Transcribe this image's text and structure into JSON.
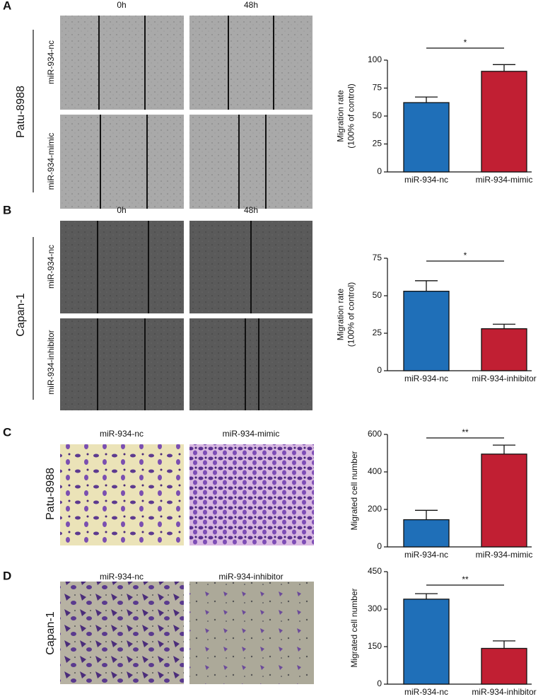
{
  "panels": [
    {
      "letter": "A",
      "columns": [
        "0h",
        "48h"
      ],
      "cell_line": "Patu-8988",
      "rows": [
        "miR-934-nc",
        "miR-934-mimic"
      ]
    },
    {
      "letter": "B",
      "columns": [
        "0h",
        "48h"
      ],
      "cell_line": "Capan-1",
      "rows": [
        "miR-934-nc",
        "miR-934-inhibitor"
      ]
    },
    {
      "letter": "C",
      "columns": [
        "miR-934-nc",
        "miR-934-mimic"
      ],
      "cell_line": "Patu-8988"
    },
    {
      "letter": "D",
      "columns": [
        "miR-934-nc",
        "miR-934-inhibitor"
      ],
      "cell_line": "Capan-1"
    }
  ],
  "chart_data": [
    {
      "type": "bar",
      "ylabel": [
        "Migration rate",
        "(100% of control)"
      ],
      "categories": [
        "miR-934-nc",
        "miR-934-mimic"
      ],
      "values": [
        62,
        90
      ],
      "errors": [
        5,
        6
      ],
      "colors": [
        "#1f6fb8",
        "#c11f33"
      ],
      "ylim": [
        0,
        100
      ],
      "yticks": [
        0,
        25,
        50,
        75,
        100
      ],
      "annotation": "*"
    },
    {
      "type": "bar",
      "ylabel": [
        "Migration rate",
        "(100% of control)"
      ],
      "categories": [
        "miR-934-nc",
        "miR-934-inhibitor"
      ],
      "values": [
        53,
        28
      ],
      "errors": [
        7,
        3
      ],
      "colors": [
        "#1f6fb8",
        "#c11f33"
      ],
      "ylim": [
        0,
        75
      ],
      "yticks": [
        0,
        25,
        50,
        75
      ],
      "annotation": "*"
    },
    {
      "type": "bar",
      "ylabel": [
        "Migrated cell number"
      ],
      "categories": [
        "miR-934-nc",
        "miR-934-mimic"
      ],
      "values": [
        145,
        495
      ],
      "errors": [
        50,
        48
      ],
      "colors": [
        "#1f6fb8",
        "#c11f33"
      ],
      "ylim": [
        0,
        600
      ],
      "yticks": [
        0,
        200,
        400,
        600
      ],
      "annotation": "**"
    },
    {
      "type": "bar",
      "ylabel": [
        "Migrated cell number"
      ],
      "categories": [
        "miR-934-nc",
        "miR-934-inhibitor"
      ],
      "values": [
        340,
        143
      ],
      "errors": [
        22,
        30
      ],
      "colors": [
        "#1f6fb8",
        "#c11f33"
      ],
      "ylim": [
        0,
        450
      ],
      "yticks": [
        0,
        150,
        300,
        450
      ],
      "annotation": "**"
    }
  ]
}
